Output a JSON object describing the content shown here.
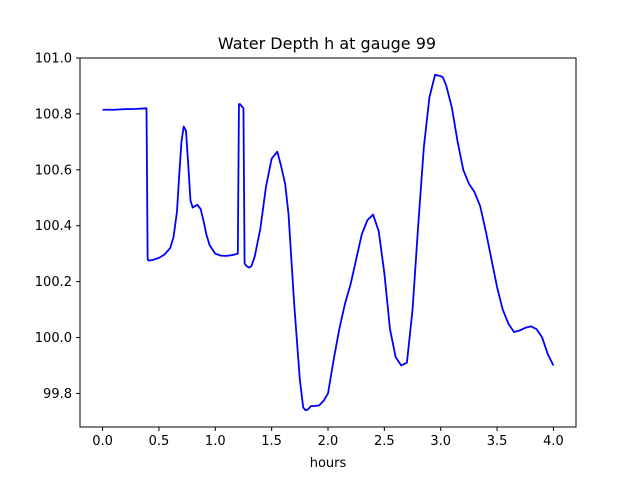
{
  "chart_data": {
    "type": "line",
    "title": "Water Depth h at gauge 99",
    "xlabel": "hours",
    "ylabel": "",
    "xlim": [
      -0.2,
      4.2
    ],
    "ylim": [
      99.68,
      101.0
    ],
    "x_ticks": [
      0.0,
      0.5,
      1.0,
      1.5,
      2.0,
      2.5,
      3.0,
      3.5,
      4.0
    ],
    "x_tick_labels": [
      "0.0",
      "0.5",
      "1.0",
      "1.5",
      "2.0",
      "2.5",
      "3.0",
      "3.5",
      "4.0"
    ],
    "y_ticks": [
      99.8,
      100.0,
      100.2,
      100.4,
      100.6,
      100.8,
      101.0
    ],
    "y_tick_labels": [
      "99.8",
      "100.0",
      "100.2",
      "100.4",
      "100.6",
      "100.8",
      "101.0"
    ],
    "grid": false,
    "line_color": "#0000ff",
    "series": [
      {
        "x": [
          0.0,
          0.1,
          0.2,
          0.3,
          0.39,
          0.4,
          0.41,
          0.45,
          0.5,
          0.55,
          0.6,
          0.63,
          0.66,
          0.68,
          0.7,
          0.72,
          0.74,
          0.76,
          0.78,
          0.8,
          0.82,
          0.84,
          0.87,
          0.9,
          0.92,
          0.95,
          1.0,
          1.05,
          1.1,
          1.15,
          1.2,
          1.21,
          1.22,
          1.24,
          1.25,
          1.26,
          1.28,
          1.3,
          1.32,
          1.35,
          1.4,
          1.45,
          1.5,
          1.55,
          1.58,
          1.62,
          1.65,
          1.7,
          1.75,
          1.78,
          1.8,
          1.82,
          1.85,
          1.88,
          1.92,
          1.96,
          2.0,
          2.05,
          2.1,
          2.15,
          2.2,
          2.25,
          2.3,
          2.35,
          2.4,
          2.45,
          2.5,
          2.55,
          2.6,
          2.65,
          2.7,
          2.75,
          2.8,
          2.85,
          2.9,
          2.95,
          3.0,
          3.02,
          3.05,
          3.1,
          3.15,
          3.2,
          3.25,
          3.3,
          3.35,
          3.4,
          3.45,
          3.5,
          3.55,
          3.6,
          3.65,
          3.7,
          3.75,
          3.8,
          3.85,
          3.9,
          3.95,
          4.0
        ],
        "y": [
          100.815,
          100.815,
          100.817,
          100.818,
          100.82,
          100.28,
          100.275,
          100.278,
          100.285,
          100.297,
          100.32,
          100.36,
          100.45,
          100.58,
          100.7,
          100.755,
          100.74,
          100.62,
          100.49,
          100.465,
          100.47,
          100.475,
          100.46,
          100.41,
          100.37,
          100.33,
          100.3,
          100.293,
          100.292,
          100.295,
          100.3,
          100.835,
          100.835,
          100.825,
          100.82,
          100.265,
          100.255,
          100.25,
          100.255,
          100.29,
          100.39,
          100.54,
          100.64,
          100.665,
          100.62,
          100.55,
          100.44,
          100.12,
          99.85,
          99.75,
          99.74,
          99.742,
          99.755,
          99.755,
          99.757,
          99.773,
          99.8,
          99.92,
          100.03,
          100.12,
          100.19,
          100.28,
          100.37,
          100.42,
          100.44,
          100.38,
          100.23,
          100.03,
          99.93,
          99.9,
          99.91,
          100.1,
          100.4,
          100.68,
          100.86,
          100.94,
          100.935,
          100.93,
          100.9,
          100.82,
          100.7,
          100.6,
          100.55,
          100.52,
          100.47,
          100.38,
          100.28,
          100.18,
          100.1,
          100.05,
          100.02,
          100.025,
          100.035,
          100.04,
          100.03,
          100.0,
          99.94,
          99.9
        ]
      }
    ]
  }
}
